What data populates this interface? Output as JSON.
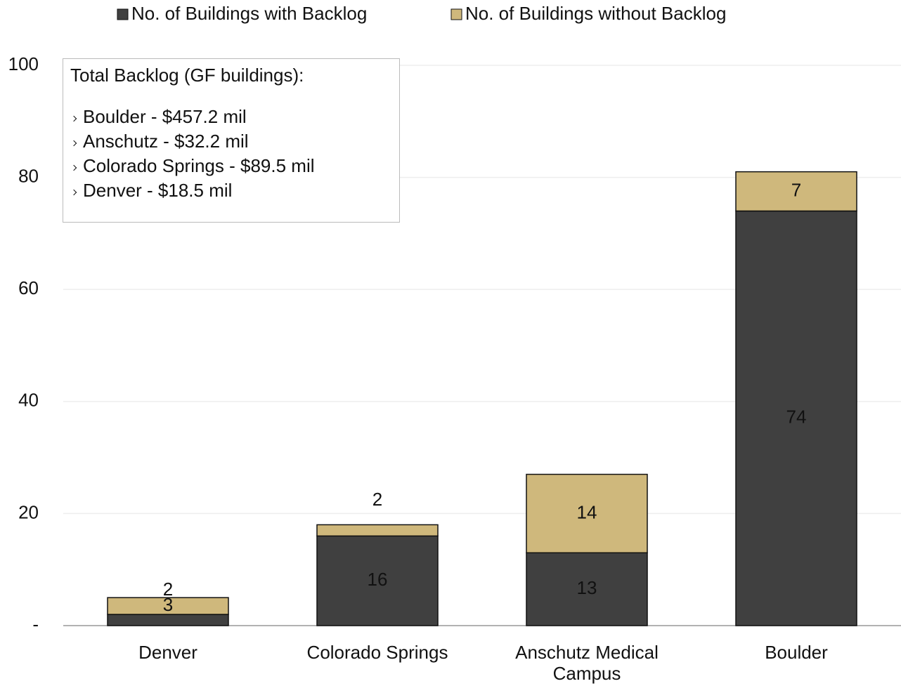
{
  "chart_data": {
    "type": "stacked_bar",
    "categories": [
      "Denver",
      "Colorado Springs",
      "Anschutz Medical Campus",
      "Boulder"
    ],
    "series": [
      {
        "name": "No. of Buildings with Backlog",
        "color": "#404040",
        "label_color": "#ffffff",
        "values": [
          2,
          16,
          13,
          74
        ]
      },
      {
        "name": "No. of Buildings without Backlog",
        "color": "#cfb87c",
        "label_color": "#000000",
        "values": [
          3,
          2,
          14,
          7
        ]
      }
    ],
    "ylim": [
      0,
      100
    ],
    "yticks": [
      {
        "value": 0,
        "label": "-"
      },
      20,
      40,
      60,
      80,
      100
    ],
    "grid": true,
    "legend": "top",
    "annotation": {
      "title": "Total Backlog (GF buildings):",
      "items": [
        "Boulder - $457.2 mil",
        "Anschutz - $32.2 mil",
        "Colorado Springs - $89.5 mil",
        "Denver - $18.5 mil"
      ]
    }
  }
}
